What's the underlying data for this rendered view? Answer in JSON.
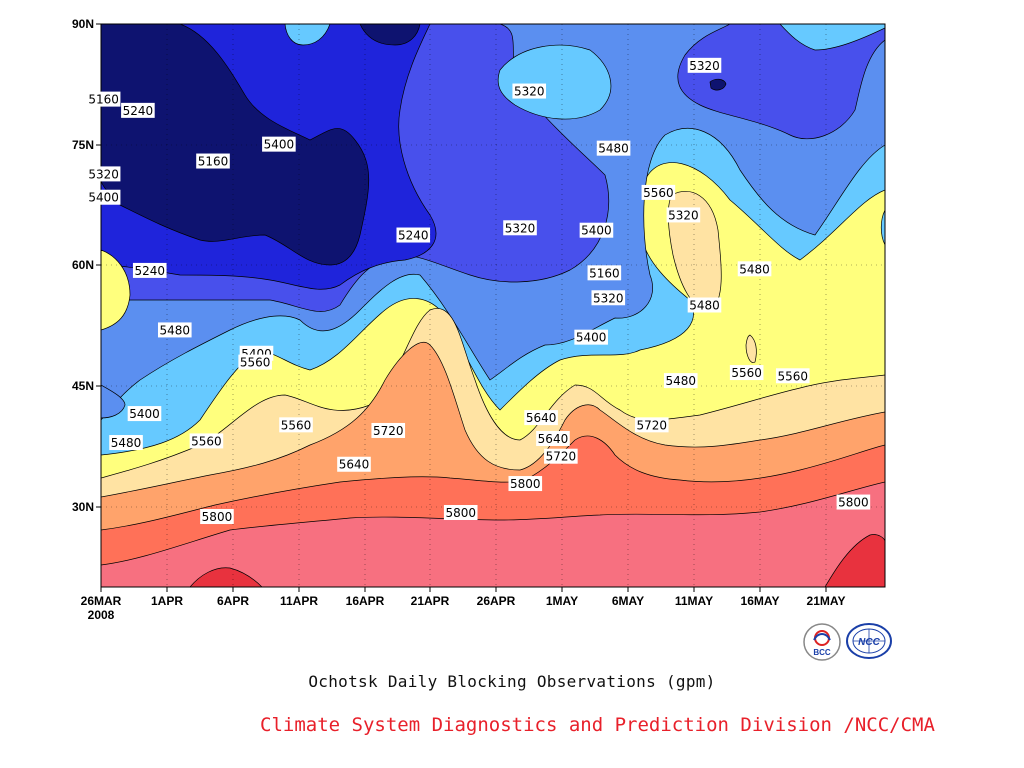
{
  "chart_data": {
    "type": "heatmap",
    "subtype": "filled-contour",
    "title": "Ochotsk Daily Blocking Observations (gpm)",
    "x_ticks": [
      "26MAR",
      "1APR",
      "6APR",
      "11APR",
      "16APR",
      "21APR",
      "26APR",
      "1MAY",
      "6MAY",
      "11MAY",
      "16MAY",
      "21MAY"
    ],
    "x_year_label": "2008",
    "y_ticks": [
      "30N",
      "45N",
      "60N",
      "75N",
      "90N"
    ],
    "ylim": [
      20,
      90
    ],
    "levels": [
      5160,
      5240,
      5320,
      5400,
      5480,
      5560,
      5640,
      5720,
      5800
    ],
    "level_colors": [
      "#0e1370",
      "#1f24db",
      "#4850ec",
      "#5b8ff0",
      "#66c9ff",
      "#ffff7d",
      "#ffe3a3",
      "#ffa36b",
      "#ff7158",
      "#f77080",
      "#e8323e"
    ],
    "grid": true,
    "contour_labels": [
      {
        "value": "5240",
        "x": 28.8,
        "y": 79.2
      },
      {
        "value": "5160",
        "x": 26.2,
        "y": 80.6
      },
      {
        "value": "5160",
        "x": 34.5,
        "y": 72.9
      },
      {
        "value": "5320",
        "x": 26.2,
        "y": 71.3
      },
      {
        "value": "5400",
        "x": 26.2,
        "y": 68.4
      },
      {
        "value": "5240",
        "x": 49.7,
        "y": 63.7
      },
      {
        "value": "5240",
        "x": 29.7,
        "y": 59.3
      },
      {
        "value": "5160",
        "x": 64.2,
        "y": 59.0
      },
      {
        "value": "5320",
        "x": 57.8,
        "y": 64.6
      },
      {
        "value": "5480",
        "x": 71.8,
        "y": 55.0
      },
      {
        "value": "5320",
        "x": 64.5,
        "y": 55.9
      },
      {
        "value": "5400",
        "x": 39.5,
        "y": 75.0
      },
      {
        "value": "5400",
        "x": 63.2,
        "y": 51.0
      },
      {
        "value": "5320",
        "x": 70.2,
        "y": 66.2
      },
      {
        "value": "5480",
        "x": 31.6,
        "y": 51.9
      },
      {
        "value": "5400",
        "x": 29.3,
        "y": 41.5
      },
      {
        "value": "5480",
        "x": 27.9,
        "y": 37.9
      },
      {
        "value": "5560",
        "x": 34.0,
        "y": 38.1
      },
      {
        "value": "5560",
        "x": 40.8,
        "y": 40.1
      },
      {
        "value": "5400",
        "x": 37.8,
        "y": 49.0
      },
      {
        "value": "5560",
        "x": 37.7,
        "y": 47.9
      },
      {
        "value": "5640",
        "x": 45.2,
        "y": 35.2
      },
      {
        "value": "5720",
        "x": 47.8,
        "y": 39.4
      },
      {
        "value": "5640",
        "x": 59.4,
        "y": 41.0
      },
      {
        "value": "5720",
        "x": 67.8,
        "y": 40.1
      },
      {
        "value": "5480",
        "x": 70.0,
        "y": 45.6
      },
      {
        "value": "5560",
        "x": 75.0,
        "y": 46.6
      },
      {
        "value": "5480",
        "x": 64.9,
        "y": 74.5
      },
      {
        "value": "5560",
        "x": 68.3,
        "y": 69.0
      },
      {
        "value": "5320",
        "x": 58.5,
        "y": 81.6
      },
      {
        "value": "5320",
        "x": 71.8,
        "y": 84.8
      },
      {
        "value": "5400",
        "x": 63.6,
        "y": 64.3
      },
      {
        "value": "5480",
        "x": 75.6,
        "y": 59.5
      },
      {
        "value": "5560",
        "x": 78.5,
        "y": 46.2
      },
      {
        "value": "5640",
        "x": 60.3,
        "y": 38.4
      },
      {
        "value": "5720",
        "x": 60.9,
        "y": 36.2
      },
      {
        "value": "5800",
        "x": 58.2,
        "y": 32.8
      },
      {
        "value": "5800",
        "x": 34.8,
        "y": 28.7
      },
      {
        "value": "5800",
        "x": 53.3,
        "y": 29.2
      },
      {
        "value": "5800",
        "x": 83.1,
        "y": 30.5
      }
    ]
  },
  "logos": [
    "BCC",
    "NCC"
  ]
}
